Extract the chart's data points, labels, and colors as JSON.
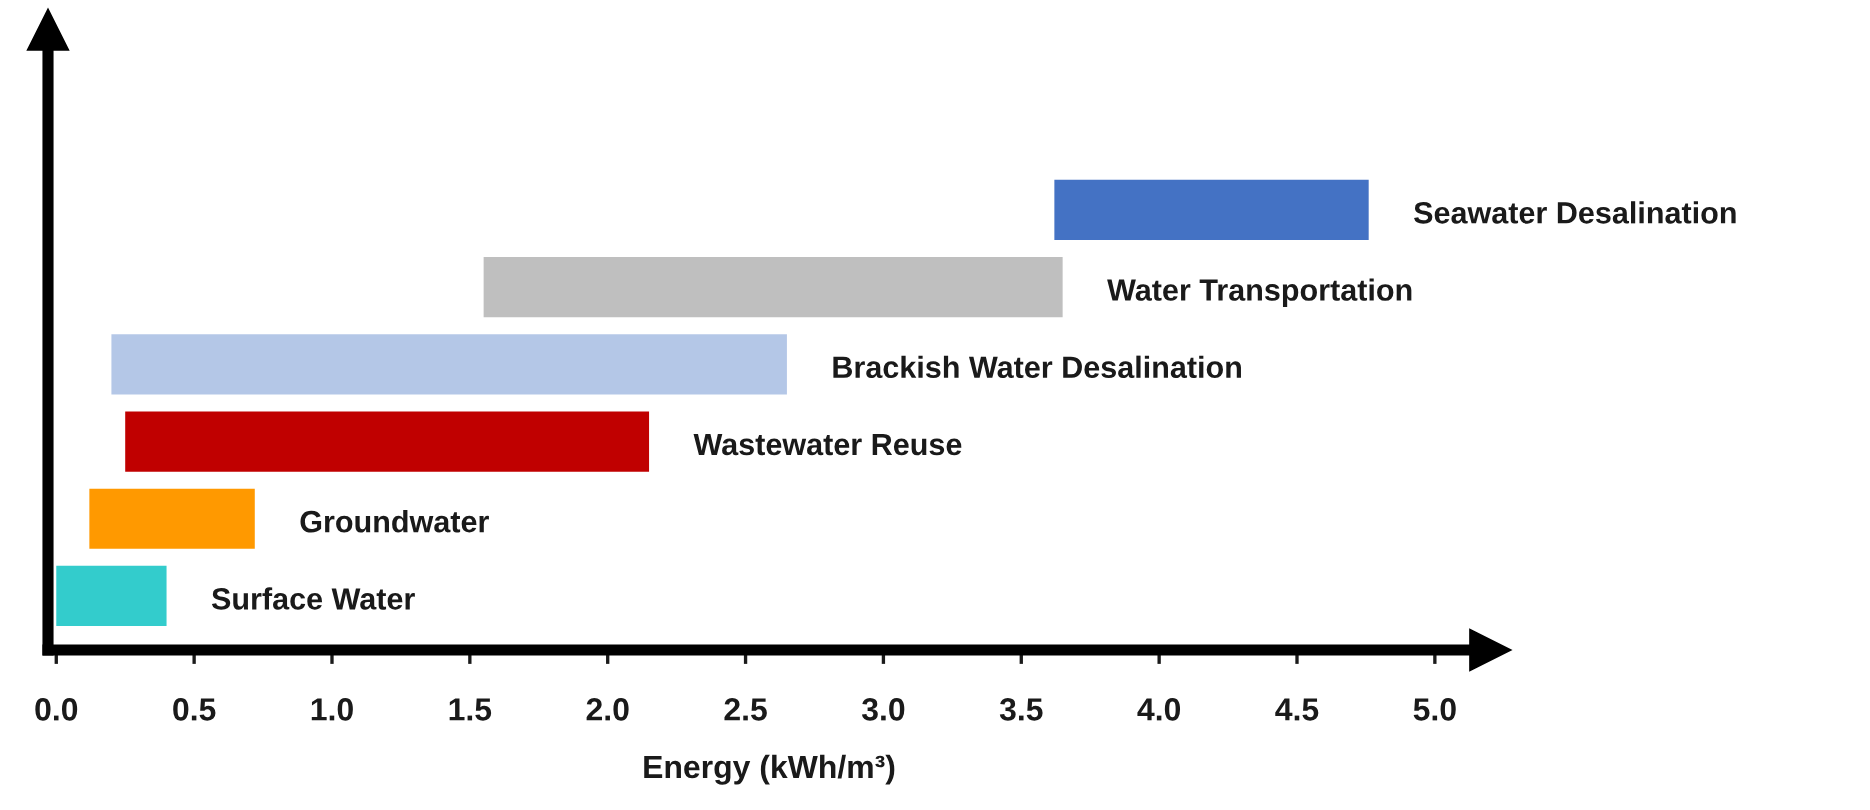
{
  "chart_data": {
    "type": "bar",
    "orientation": "horizontal",
    "xlabel": "Energy (kWh/m³)",
    "categories": [
      "Seawater Desalination",
      "Water Transportation",
      "Brackish Water Desalination",
      "Wastewater Reuse",
      "Groundwater",
      "Surface Water"
    ],
    "base": [
      3.62,
      1.55,
      0.2,
      0.25,
      0.12,
      0
    ],
    "values": [
      1.14,
      2.1,
      2.45,
      1.9,
      0.6,
      0.4
    ],
    "colors": [
      "#4472c4",
      "#bfbfbf",
      "#b4c7e7",
      "#c00000",
      "#ff9900",
      "#33cccc"
    ],
    "xlim": [
      -0.03,
      5.2
    ],
    "xticks": [
      {
        "value": 0,
        "label": "0.0"
      },
      0.5,
      {
        "value": 1,
        "label": "1.0"
      },
      1.5,
      {
        "value": 2,
        "label": "2.0"
      },
      2.5,
      {
        "value": 3,
        "label": "3.0"
      },
      3.5,
      {
        "value": 4,
        "label": "4.0"
      },
      4.5,
      {
        "value": 5,
        "label": "5.0"
      }
    ],
    "tick_labels": "x",
    "grid": false,
    "legend": false
  }
}
